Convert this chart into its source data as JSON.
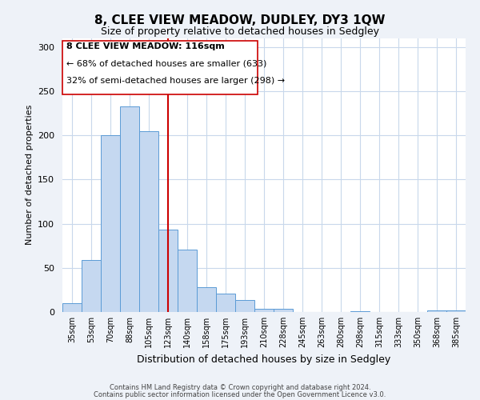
{
  "title": "8, CLEE VIEW MEADOW, DUDLEY, DY3 1QW",
  "subtitle": "Size of property relative to detached houses in Sedgley",
  "xlabel": "Distribution of detached houses by size in Sedgley",
  "ylabel": "Number of detached properties",
  "bar_labels": [
    "35sqm",
    "53sqm",
    "70sqm",
    "88sqm",
    "105sqm",
    "123sqm",
    "140sqm",
    "158sqm",
    "175sqm",
    "193sqm",
    "210sqm",
    "228sqm",
    "245sqm",
    "263sqm",
    "280sqm",
    "298sqm",
    "315sqm",
    "333sqm",
    "350sqm",
    "368sqm",
    "385sqm"
  ],
  "bar_values": [
    10,
    59,
    200,
    233,
    205,
    93,
    71,
    28,
    21,
    14,
    4,
    4,
    0,
    0,
    0,
    1,
    0,
    0,
    0,
    2,
    2
  ],
  "bar_color": "#c5d8f0",
  "bar_edge_color": "#5b9bd5",
  "vline_x": 5.0,
  "vline_color": "#cc0000",
  "ylim": [
    0,
    310
  ],
  "yticks": [
    0,
    50,
    100,
    150,
    200,
    250,
    300
  ],
  "annotation_title": "8 CLEE VIEW MEADOW: 116sqm",
  "annotation_line1": "← 68% of detached houses are smaller (633)",
  "annotation_line2": "32% of semi-detached houses are larger (298) →",
  "annotation_box_color": "#ffffff",
  "annotation_border_color": "#cc0000",
  "footer_line1": "Contains HM Land Registry data © Crown copyright and database right 2024.",
  "footer_line2": "Contains public sector information licensed under the Open Government Licence v3.0.",
  "background_color": "#eef2f8",
  "plot_background_color": "#ffffff",
  "grid_color": "#c8d8eb"
}
